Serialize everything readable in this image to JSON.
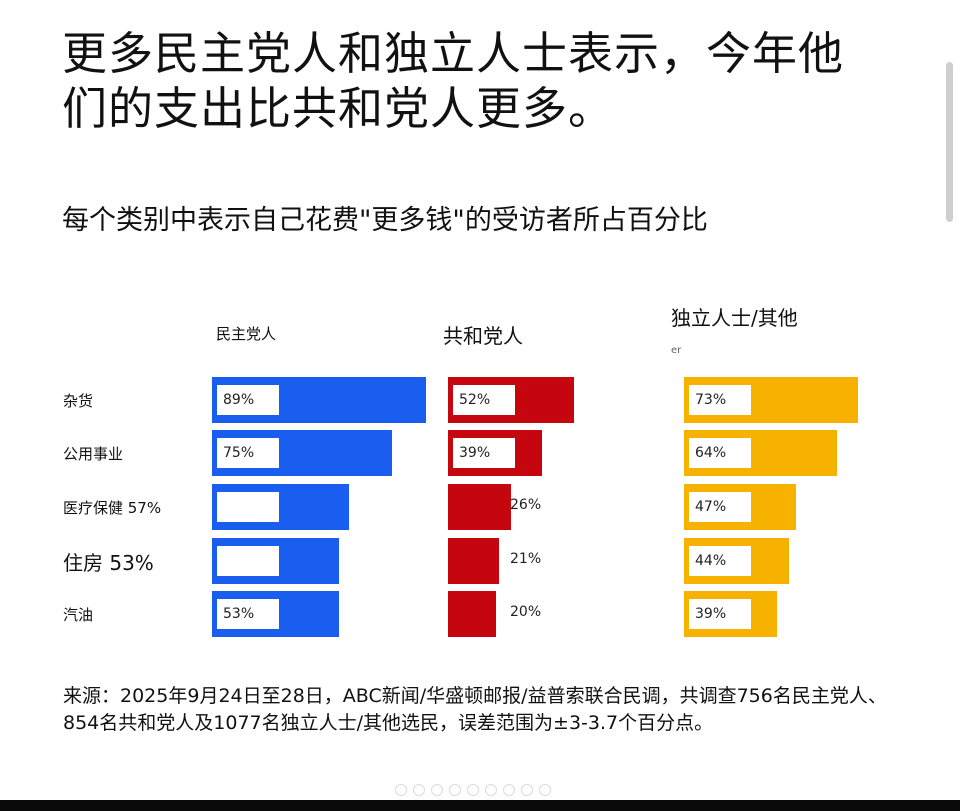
{
  "title": "更多民主党人和独立人士表示，今年他们的支出比共和党人更多。",
  "subtitle": "每个类别中表示自己花费\"更多钱\"的受访者所占百分比",
  "source": "来源：2025年9月24日至28日，ABC新闻/华盛顿邮报/益普索联合民调，共调查756名民主党人、854名共和党人及1077名独立人士/其他选民，误差范围为±3-3.7个百分点。",
  "colors": {
    "democrat": "#1a5ef0",
    "republican": "#c5060e",
    "independent": "#f7b200"
  },
  "chart_data": {
    "type": "bar",
    "orientation": "horizontal",
    "title": "每个类别中表示自己花费\"更多钱\"的受访者所占百分比",
    "categories": [
      "杂货",
      "公用事业",
      "医疗保健",
      "住房",
      "汽油"
    ],
    "category_labels": [
      "杂货",
      "公用事业",
      "医疗保健 57%",
      "住房 53%",
      "汽油"
    ],
    "series": [
      {
        "name": "民主党人",
        "values": [
          89,
          75,
          57,
          53,
          53
        ],
        "labels": [
          "89%",
          "75%",
          "",
          "",
          "53%"
        ]
      },
      {
        "name": "共和党人",
        "values": [
          52,
          39,
          26,
          21,
          20
        ],
        "labels": [
          "52%",
          "39%",
          "26%",
          "21%",
          "20%"
        ]
      },
      {
        "name": "独立人士/其他",
        "values": [
          73,
          64,
          47,
          44,
          39
        ],
        "labels": [
          "73%",
          "64%",
          "47%",
          "44%",
          "39%"
        ]
      }
    ],
    "series_subtext": [
      "",
      "",
      "er"
    ],
    "unit": "%"
  }
}
